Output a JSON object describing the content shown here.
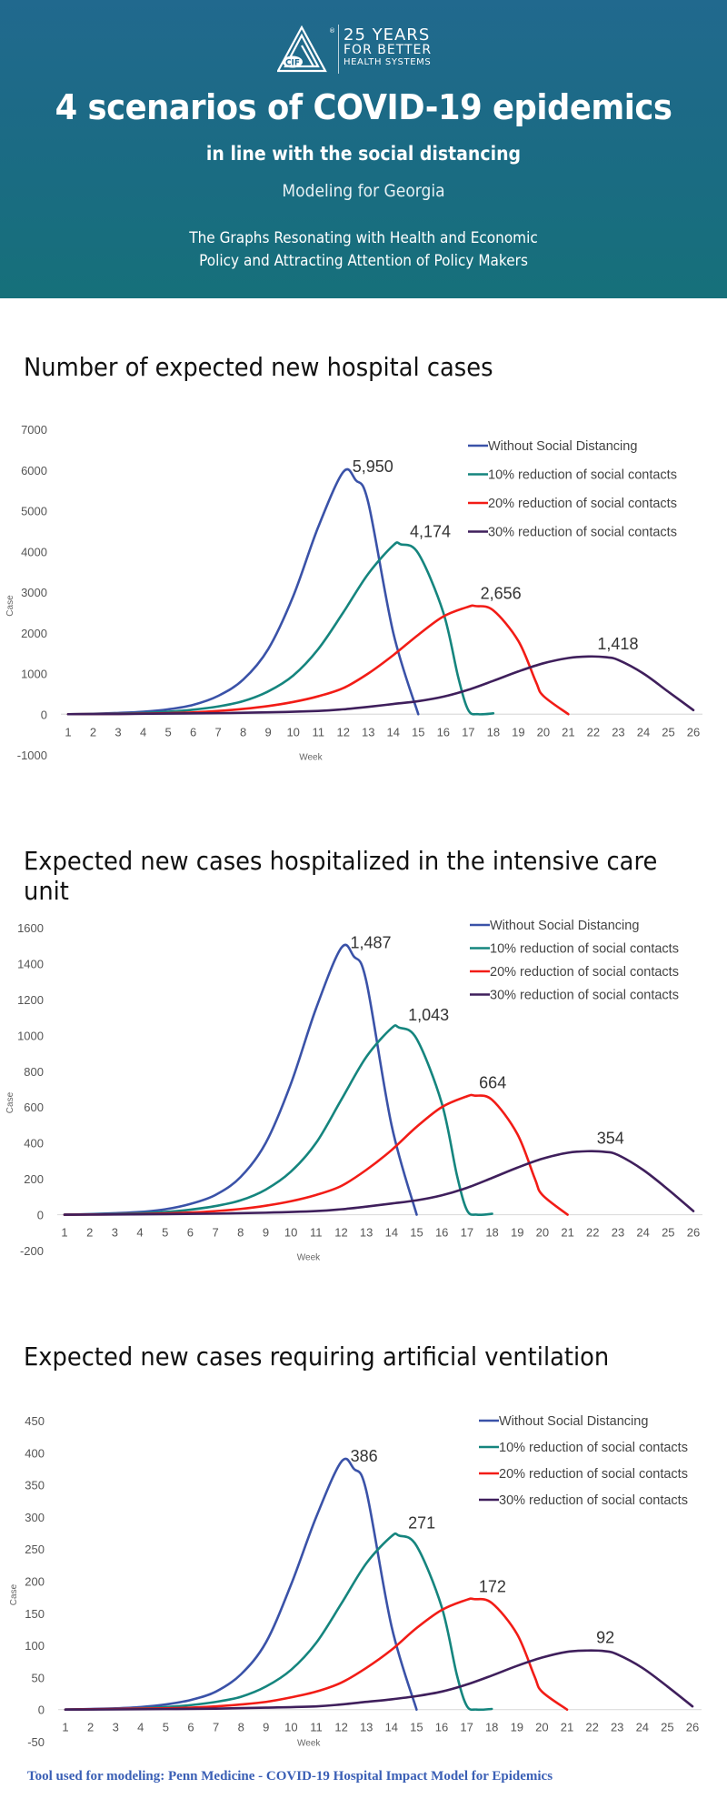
{
  "header": {
    "logo": {
      "icon": "cif-triangle-logo-icon",
      "mark": "CIF",
      "registered": "®",
      "line1": "25 YEARS",
      "line2": "FOR BETTER",
      "line3": "HEALTH SYSTEMS"
    },
    "title": "4 scenarios of COVID-19 epidemics",
    "subtitle": "in line with the social distancing",
    "modeling": "Modeling for Georgia",
    "description_line1": "The Graphs Resonating with Health and Economic",
    "description_line2": "Policy and Attracting Attention of Policy Makers",
    "colors": {
      "gradient_top": "#21698e",
      "gradient_bottom": "#16707a"
    }
  },
  "series_meta": [
    {
      "name": "Without Social Distancing",
      "color": "#3a52a8"
    },
    {
      "name": "10% reduction of social contacts",
      "color": "#15857e"
    },
    {
      "name": "20% reduction of social contacts",
      "color": "#f21c16"
    },
    {
      "name": "30% reduction of social contacts",
      "color": "#3f1f5c"
    }
  ],
  "chart_data": [
    {
      "type": "line",
      "title": "Number of expected new hospital cases",
      "xlabel": "Week",
      "ylabel": "Case",
      "ylim": [
        -1000,
        7000
      ],
      "yticks": [
        7000,
        6000,
        5000,
        4000,
        3000,
        2000,
        1000,
        0,
        -1000
      ],
      "xticks": [
        1,
        2,
        3,
        4,
        5,
        6,
        7,
        8,
        9,
        10,
        11,
        12,
        13,
        14,
        15,
        16,
        17,
        18,
        19,
        20,
        21,
        22,
        23,
        24,
        25,
        26
      ],
      "legend": "top-right",
      "grid": false,
      "series": [
        {
          "name": "Without Social Distancing",
          "peak_label": "5,950",
          "peak": [
            12.0,
            5950
          ],
          "x": [
            1,
            2,
            3,
            4,
            5,
            6,
            7,
            8,
            9,
            10,
            11,
            12,
            12.5,
            13,
            14,
            15
          ],
          "y": [
            0,
            10,
            30,
            60,
            120,
            230,
            450,
            850,
            1600,
            2900,
            4600,
            5950,
            5750,
            5200,
            2000,
            0
          ]
        },
        {
          "name": "10% reduction of social contacts",
          "peak_label": "4,174",
          "peak": [
            14.3,
            4174
          ],
          "x": [
            1,
            2,
            3,
            4,
            5,
            6,
            7,
            8,
            9,
            10,
            11,
            12,
            13,
            14,
            14.3,
            15,
            16,
            16.6,
            17,
            17.4,
            18
          ],
          "y": [
            0,
            5,
            15,
            30,
            60,
            110,
            190,
            320,
            560,
            950,
            1600,
            2500,
            3450,
            4150,
            4174,
            3950,
            2500,
            900,
            100,
            0,
            20
          ]
        },
        {
          "name": "20% reduction of social contacts",
          "peak_label": "2,656",
          "peak": [
            17.3,
            2656
          ],
          "x": [
            1,
            2,
            3,
            4,
            5,
            6,
            7,
            8,
            9,
            10,
            11,
            12,
            13,
            14,
            15,
            16,
            17,
            17.3,
            18,
            19,
            19.7,
            20,
            21
          ],
          "y": [
            0,
            3,
            8,
            15,
            25,
            45,
            80,
            130,
            200,
            300,
            440,
            640,
            1000,
            1450,
            1950,
            2400,
            2640,
            2656,
            2550,
            1800,
            800,
            450,
            0
          ]
        },
        {
          "name": "30% reduction of social contacts",
          "peak_label": "1,418",
          "peak": [
            21.8,
            1418
          ],
          "x": [
            1,
            3,
            5,
            7,
            9,
            11,
            12,
            13,
            14,
            15,
            16,
            17,
            18,
            19,
            20,
            21,
            21.8,
            22.5,
            23,
            24,
            25,
            26
          ],
          "y": [
            0,
            5,
            15,
            25,
            45,
            80,
            120,
            180,
            250,
            320,
            430,
            600,
            820,
            1050,
            1250,
            1380,
            1418,
            1400,
            1330,
            1000,
            550,
            100
          ]
        }
      ]
    },
    {
      "type": "line",
      "title": "Expected new cases hospitalized in the intensive care unit",
      "xlabel": "Week",
      "ylabel": "Case",
      "ylim": [
        -200,
        1600
      ],
      "yticks": [
        1600,
        1400,
        1200,
        1000,
        800,
        600,
        400,
        200,
        0,
        -200
      ],
      "xticks": [
        1,
        2,
        3,
        4,
        5,
        6,
        7,
        8,
        9,
        10,
        11,
        12,
        13,
        14,
        15,
        16,
        17,
        18,
        19,
        20,
        21,
        22,
        23,
        24,
        25,
        26
      ],
      "legend": "top-right",
      "grid": false,
      "series": [
        {
          "name": "Without Social Distancing",
          "peak_label": "1,487",
          "peak": [
            12.0,
            1487
          ],
          "x": [
            1,
            2,
            3,
            4,
            5,
            6,
            7,
            8,
            9,
            10,
            11,
            12,
            12.5,
            13,
            14,
            15
          ],
          "y": [
            0,
            3,
            8,
            15,
            30,
            60,
            110,
            210,
            400,
            730,
            1150,
            1487,
            1440,
            1300,
            500,
            0
          ]
        },
        {
          "name": "10% reduction of social contacts",
          "peak_label": "1,043",
          "peak": [
            14.3,
            1043
          ],
          "x": [
            1,
            2,
            3,
            4,
            5,
            6,
            7,
            8,
            9,
            10,
            11,
            12,
            13,
            14,
            14.3,
            15,
            16,
            16.6,
            17,
            17.4,
            18
          ],
          "y": [
            0,
            2,
            4,
            8,
            15,
            28,
            48,
            80,
            140,
            240,
            400,
            640,
            880,
            1040,
            1043,
            980,
            620,
            220,
            25,
            0,
            5
          ]
        },
        {
          "name": "20% reduction of social contacts",
          "peak_label": "664",
          "peak": [
            17.3,
            664
          ],
          "x": [
            1,
            2,
            3,
            4,
            5,
            6,
            7,
            8,
            9,
            10,
            11,
            12,
            13,
            14,
            15,
            16,
            17,
            17.3,
            18,
            19,
            19.7,
            20,
            21
          ],
          "y": [
            0,
            1,
            2,
            4,
            7,
            12,
            20,
            32,
            50,
            75,
            110,
            160,
            250,
            360,
            490,
            600,
            660,
            664,
            640,
            450,
            200,
            110,
            0
          ]
        },
        {
          "name": "30% reduction of social contacts",
          "peak_label": "354",
          "peak": [
            21.8,
            354
          ],
          "x": [
            1,
            3,
            5,
            7,
            9,
            11,
            12,
            13,
            14,
            15,
            16,
            17,
            18,
            19,
            20,
            21,
            21.8,
            22.5,
            23,
            24,
            25,
            26
          ],
          "y": [
            0,
            1,
            3,
            6,
            11,
            20,
            30,
            45,
            62,
            80,
            108,
            150,
            205,
            262,
            312,
            345,
            354,
            350,
            333,
            250,
            140,
            20
          ]
        }
      ]
    },
    {
      "type": "line",
      "title": "Expected new cases requiring artificial ventilation",
      "xlabel": "Week",
      "ylabel": "Case",
      "ylim": [
        -50,
        450
      ],
      "yticks": [
        450,
        400,
        350,
        300,
        250,
        200,
        150,
        100,
        50,
        0,
        -50
      ],
      "xticks": [
        1,
        2,
        3,
        4,
        5,
        6,
        7,
        8,
        9,
        10,
        11,
        12,
        13,
        14,
        15,
        16,
        17,
        18,
        19,
        20,
        21,
        22,
        23,
        24,
        25,
        26
      ],
      "legend": "top-right",
      "grid": false,
      "series": [
        {
          "name": "Without Social Distancing",
          "peak_label": "386",
          "peak": [
            12.0,
            386
          ],
          "x": [
            1,
            2,
            3,
            4,
            5,
            6,
            7,
            8,
            9,
            10,
            11,
            12,
            12.5,
            13,
            14,
            15
          ],
          "y": [
            0,
            1,
            2,
            4,
            8,
            15,
            28,
            55,
            105,
            195,
            300,
            386,
            375,
            340,
            130,
            0
          ]
        },
        {
          "name": "10% reduction of social contacts",
          "peak_label": "271",
          "peak": [
            14.3,
            271
          ],
          "x": [
            1,
            2,
            3,
            4,
            5,
            6,
            7,
            8,
            9,
            10,
            11,
            12,
            13,
            14,
            14.3,
            15,
            16,
            16.6,
            17,
            17.4,
            18
          ],
          "y": [
            0,
            0.5,
            1,
            2,
            4,
            7,
            12,
            20,
            36,
            62,
            104,
            165,
            228,
            270,
            271,
            255,
            160,
            55,
            6,
            0,
            1
          ]
        },
        {
          "name": "20% reduction of social contacts",
          "peak_label": "172",
          "peak": [
            17.3,
            172
          ],
          "x": [
            1,
            2,
            3,
            4,
            5,
            6,
            7,
            8,
            9,
            10,
            11,
            12,
            13,
            14,
            15,
            16,
            17,
            17.3,
            18,
            19,
            19.7,
            20,
            21
          ],
          "y": [
            0,
            0.5,
            1,
            1.5,
            2,
            3,
            5,
            8,
            12,
            19,
            28,
            42,
            65,
            93,
            127,
            155,
            171,
            172,
            166,
            118,
            52,
            28,
            0
          ]
        },
        {
          "name": "30% reduction of social contacts",
          "peak_label": "92",
          "peak": [
            21.8,
            92
          ],
          "x": [
            1,
            3,
            5,
            7,
            9,
            11,
            12,
            13,
            14,
            15,
            16,
            17,
            18,
            19,
            20,
            21,
            21.8,
            22.5,
            23,
            24,
            25,
            26
          ],
          "y": [
            0,
            0.3,
            0.8,
            1.5,
            3,
            5,
            8,
            12,
            16,
            21,
            28,
            39,
            53,
            68,
            81,
            90,
            92,
            91,
            86,
            65,
            36,
            5
          ]
        }
      ]
    }
  ],
  "footer": {
    "text": "Tool used for modeling: Penn Medicine - COVID-19 Hospital Impact Model for Epidemics",
    "color": "#3a5fb5"
  }
}
